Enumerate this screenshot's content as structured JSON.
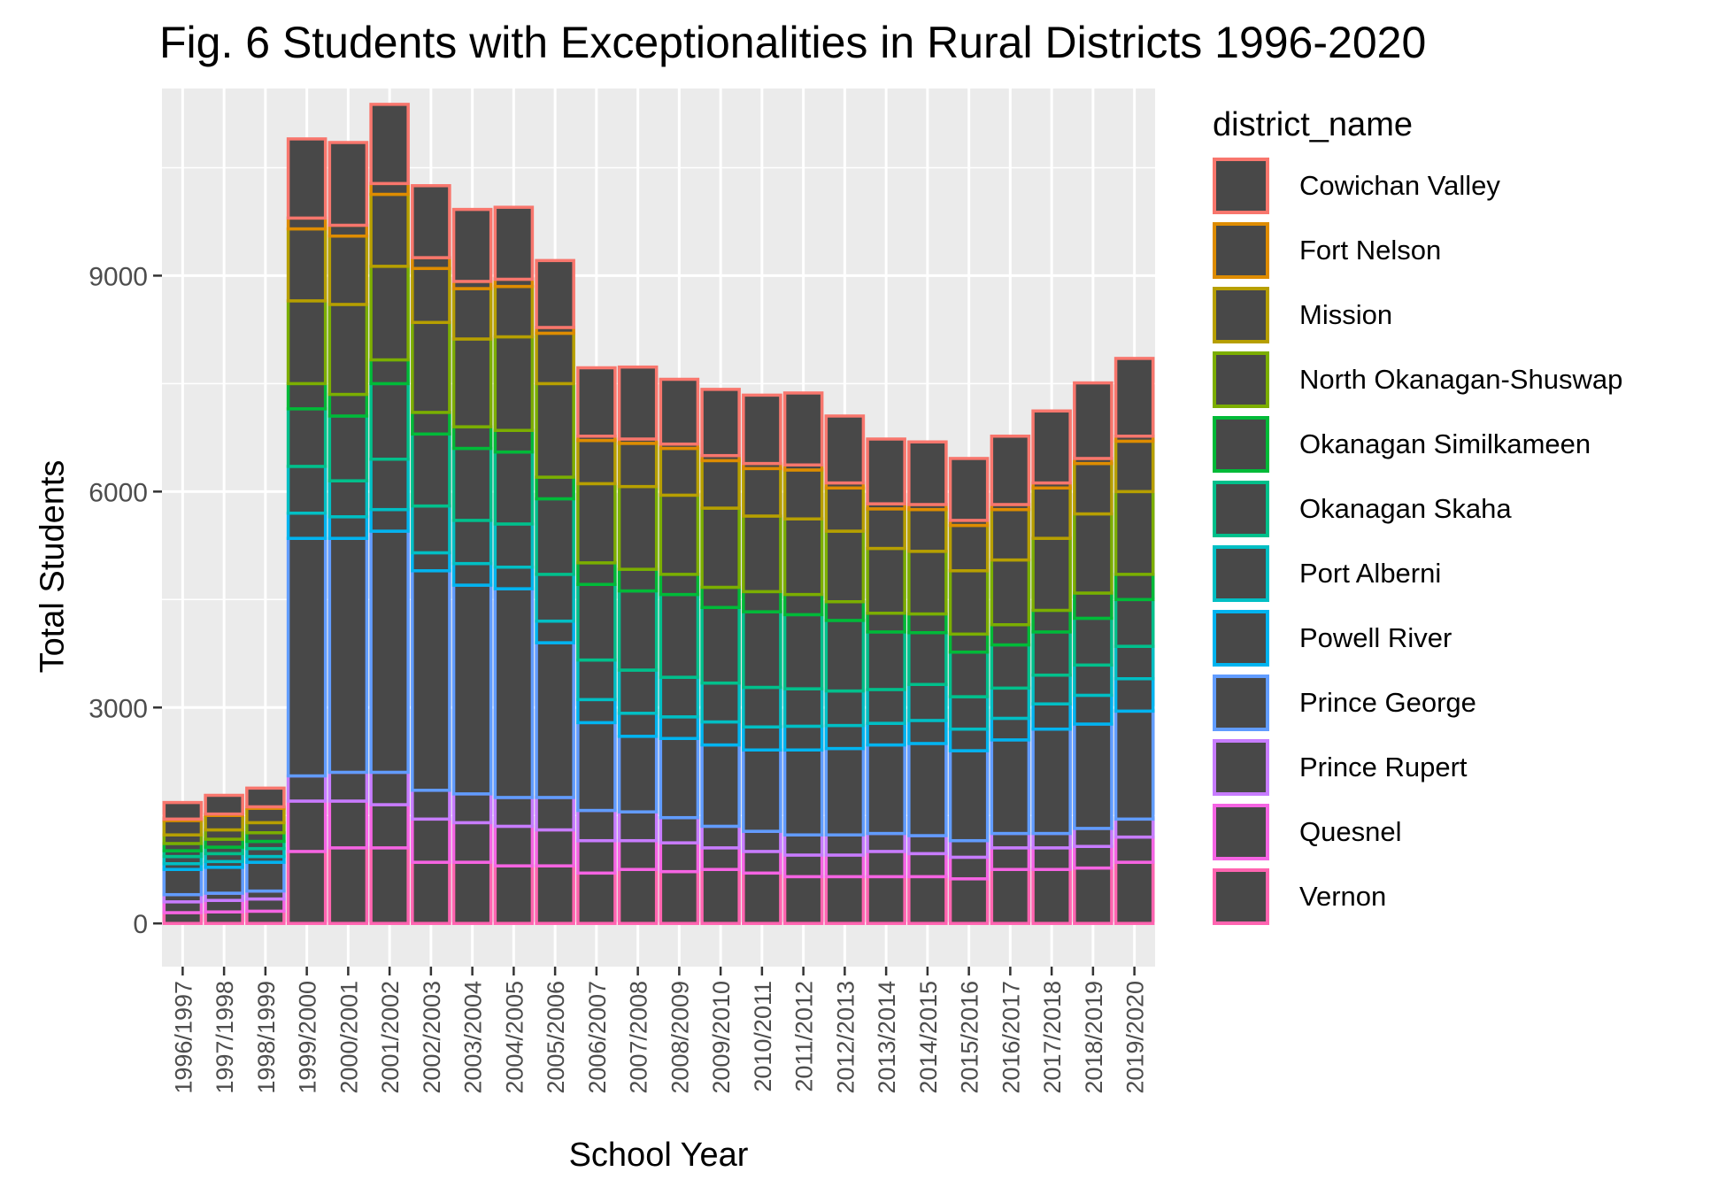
{
  "chart_data": {
    "type": "bar",
    "stacked": true,
    "title": "Fig. 6 Students with Exceptionalities in Rural Districts 1996-2020",
    "xlabel": "School Year",
    "ylabel": "Total Students",
    "ylim": [
      -600,
      11600
    ],
    "yticks": [
      0,
      3000,
      6000,
      9000
    ],
    "grid": true,
    "legend_position": "right",
    "legend_title": "district_name",
    "bar_fill": "#484848",
    "panel_background": "#ebebeb",
    "grid_color": "#ffffff",
    "categories": [
      "1996/1997",
      "1997/1998",
      "1998/1999",
      "1999/2000",
      "2000/2001",
      "2001/2002",
      "2002/2003",
      "2003/2004",
      "2004/2005",
      "2005/2006",
      "2006/2007",
      "2007/2008",
      "2008/2009",
      "2009/2010",
      "2010/2011",
      "2011/2012",
      "2012/2013",
      "2013/2014",
      "2014/2015",
      "2015/2016",
      "2016/2017",
      "2017/2018",
      "2018/2019",
      "2019/2020"
    ],
    "series": [
      {
        "name": "Cowichan Valley",
        "color": "#F8766D",
        "values": [
          230,
          260,
          260,
          1100,
          1150,
          1100,
          1000,
          1000,
          1000,
          930,
          950,
          1000,
          900,
          920,
          950,
          1000,
          930,
          900,
          870,
          860,
          950,
          1000,
          1050,
          1080
        ]
      },
      {
        "name": "Fort Nelson",
        "color": "#DE8C00",
        "values": [
          20,
          20,
          20,
          150,
          150,
          150,
          150,
          100,
          100,
          80,
          60,
          60,
          60,
          70,
          70,
          70,
          70,
          70,
          70,
          70,
          70,
          70,
          70,
          70
        ]
      },
      {
        "name": "Mission",
        "color": "#B79F00",
        "values": [
          200,
          200,
          200,
          1000,
          950,
          1000,
          750,
          700,
          700,
          700,
          600,
          600,
          650,
          660,
          660,
          680,
          600,
          550,
          580,
          630,
          700,
          700,
          700,
          700
        ]
      },
      {
        "name": "North Okanagan-Shuswap",
        "color": "#7CAE00",
        "values": [
          120,
          130,
          140,
          1150,
          1250,
          1300,
          1250,
          1220,
          1300,
          1300,
          1100,
          1150,
          1100,
          1100,
          1050,
          1050,
          980,
          900,
          870,
          880,
          900,
          1000,
          1100,
          1150
        ]
      },
      {
        "name": "Okanagan Similkameen",
        "color": "#00BA38",
        "values": [
          100,
          110,
          120,
          350,
          300,
          330,
          300,
          300,
          300,
          300,
          300,
          300,
          280,
          280,
          280,
          280,
          260,
          260,
          260,
          250,
          280,
          300,
          350,
          350
        ]
      },
      {
        "name": "Okanagan Skaha",
        "color": "#00C08B",
        "values": [
          80,
          90,
          100,
          800,
          900,
          1050,
          1000,
          1000,
          1000,
          1050,
          1050,
          1100,
          1150,
          1050,
          1050,
          1030,
          980,
          800,
          720,
          620,
          600,
          600,
          650,
          650
        ]
      },
      {
        "name": "Port Alberni",
        "color": "#00BFC4",
        "values": [
          100,
          110,
          110,
          650,
          500,
          700,
          650,
          600,
          600,
          650,
          550,
          600,
          550,
          540,
          550,
          520,
          480,
          470,
          500,
          450,
          420,
          400,
          420,
          450
        ]
      },
      {
        "name": "Powell River",
        "color": "#00B4F0",
        "values": [
          80,
          80,
          80,
          350,
          300,
          300,
          250,
          300,
          300,
          300,
          320,
          320,
          300,
          320,
          320,
          330,
          320,
          300,
          320,
          300,
          300,
          350,
          400,
          450
        ]
      },
      {
        "name": "Prince George",
        "color": "#619CFF",
        "values": [
          350,
          360,
          400,
          3300,
          3250,
          3350,
          3050,
          2900,
          2900,
          2150,
          1220,
          1050,
          1100,
          1130,
          1130,
          1180,
          1200,
          1230,
          1280,
          1250,
          1300,
          1450,
          1450,
          1500
        ]
      },
      {
        "name": "Prince Rupert",
        "color": "#C77CFF",
        "values": [
          100,
          100,
          110,
          350,
          400,
          450,
          400,
          400,
          400,
          450,
          420,
          400,
          350,
          300,
          280,
          280,
          280,
          250,
          250,
          230,
          200,
          200,
          250,
          250
        ]
      },
      {
        "name": "Quesnel",
        "color": "#F564E3",
        "values": [
          150,
          160,
          170,
          700,
          650,
          600,
          600,
          550,
          550,
          500,
          450,
          400,
          400,
          300,
          300,
          300,
          300,
          350,
          320,
          300,
          300,
          300,
          300,
          350
        ]
      },
      {
        "name": "Vernon",
        "color": "#FF64B0",
        "values": [
          150,
          160,
          170,
          1000,
          1050,
          1050,
          850,
          850,
          800,
          800,
          700,
          750,
          720,
          750,
          700,
          650,
          650,
          650,
          650,
          620,
          750,
          750,
          770,
          850
        ]
      }
    ]
  }
}
